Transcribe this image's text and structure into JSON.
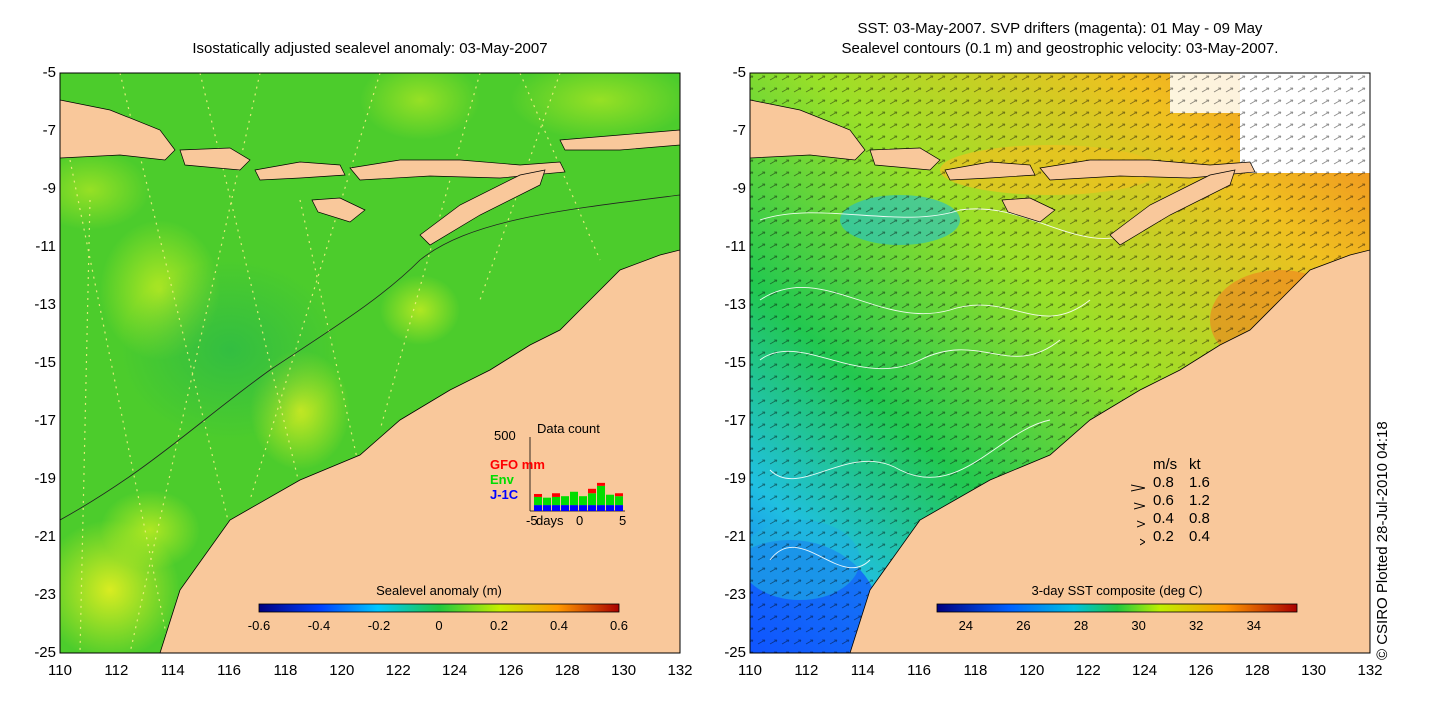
{
  "left_panel": {
    "title": "Isostatically adjusted sealevel anomaly: 03-May-2007",
    "colorbar": {
      "label": "Sealevel anomaly (m)",
      "ticks": [
        "-0.6",
        "-0.4",
        "-0.2",
        "0",
        "0.2",
        "0.4",
        "0.6"
      ],
      "range": [
        -0.6,
        0.6
      ]
    },
    "data_count": {
      "title": "Data count",
      "ymax_label": "500",
      "legend": [
        {
          "name": "GFO mm",
          "color": "#ff0000"
        },
        {
          "name": "Env",
          "color": "#00dd00"
        },
        {
          "name": "J-1C",
          "color": "#0000ff"
        }
      ],
      "xlabel": "days",
      "xticks": [
        "-5",
        "0",
        "5"
      ],
      "days": [
        -5,
        -4,
        -3,
        -2,
        -1,
        0,
        1,
        2,
        3,
        4
      ],
      "j1c": [
        40,
        40,
        40,
        40,
        40,
        40,
        40,
        40,
        40,
        40
      ],
      "env": [
        55,
        50,
        55,
        60,
        90,
        60,
        80,
        130,
        70,
        60
      ],
      "gfo": [
        20,
        0,
        25,
        0,
        0,
        0,
        30,
        20,
        0,
        20
      ]
    }
  },
  "right_panel": {
    "title_line1": "SST: 03-May-2007. SVP drifters (magenta): 01 May - 09 May",
    "title_line2": "Sealevel contours (0.1 m) and geostrophic velocity: 03-May-2007.",
    "colorbar": {
      "label": "3-day SST composite (deg C)",
      "ticks": [
        "24",
        "26",
        "28",
        "30",
        "32",
        "34"
      ],
      "range": [
        23,
        35.5
      ]
    },
    "velocity_legend": {
      "header_ms": "m/s",
      "header_kt": "kt",
      "rows": [
        {
          "ms": "0.8",
          "kt": "1.6"
        },
        {
          "ms": "0.6",
          "kt": "1.2"
        },
        {
          "ms": "0.4",
          "kt": "0.8"
        },
        {
          "ms": "0.2",
          "kt": "0.4"
        }
      ]
    }
  },
  "axes": {
    "x_ticks": [
      "110",
      "112",
      "114",
      "116",
      "118",
      "120",
      "122",
      "124",
      "126",
      "128",
      "130",
      "132"
    ],
    "y_ticks": [
      "-5",
      "-7",
      "-9",
      "-11",
      "-13",
      "-15",
      "-17",
      "-19",
      "-21",
      "-23",
      "-25"
    ]
  },
  "credit": "© CSIRO Plotted 28-Jul-2010 04:18",
  "colors": {
    "land": "#f9c89b",
    "ocean_green": "#33cc33",
    "ocean_lightgreen": "#77dd22"
  }
}
